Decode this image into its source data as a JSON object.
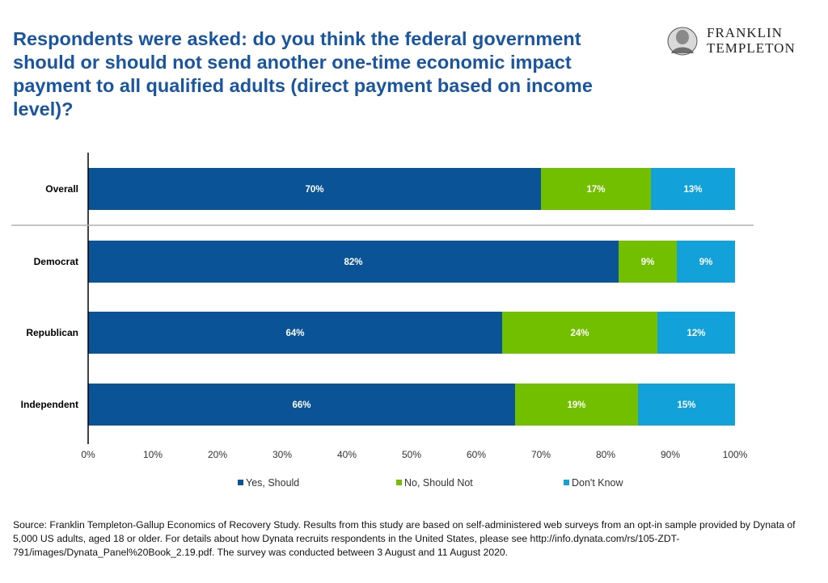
{
  "title": "Respondents were asked: do you think the federal government should or should not send another one-time economic impact payment to all qualified adults (direct payment based on income level)?",
  "logo": {
    "line1": "FRANKLIN",
    "line2": "TEMPLETON"
  },
  "source": "Source: Franklin Templeton-Gallup Economics of Recovery Study. Results from this study are based on self-administered web surveys from an opt-in sample provided by Dynata of 5,000 US adults, aged 18 or older. For details about how Dynata recruits respondents in the United States, please see http://info.dynata.com/rs/105-ZDT-791/images/Dynata_Panel%20Book_2.19.pdf. The survey was conducted between 3 August and 11 August 2020.",
  "chart_data": {
    "type": "bar",
    "orientation": "horizontal",
    "stacked": true,
    "title": "",
    "xlabel": "",
    "ylabel": "",
    "categories": [
      "Overall",
      "Democrat",
      "Republican",
      "Independent"
    ],
    "series": [
      {
        "name": "Yes, Should",
        "values": [
          70,
          82,
          64,
          66
        ],
        "labels": [
          "70%",
          "82%",
          "64%",
          "66%"
        ],
        "color": "#0a5396"
      },
      {
        "name": "No, Should Not",
        "values": [
          17,
          9,
          24,
          19
        ],
        "labels": [
          "17%",
          "9%",
          "24%",
          "19%"
        ],
        "color": "#72bf00"
      },
      {
        "name": "Don't Know",
        "values": [
          13,
          9,
          12,
          15
        ],
        "labels": [
          "13%",
          "9%",
          "12%",
          "15%"
        ],
        "color": "#12a2d9"
      }
    ],
    "xlim": [
      0,
      100
    ],
    "xticks": [
      "0%",
      "10%",
      "20%",
      "30%",
      "40%",
      "50%",
      "60%",
      "70%",
      "80%",
      "90%",
      "100%"
    ],
    "legend_position": "bottom",
    "grid": false
  }
}
